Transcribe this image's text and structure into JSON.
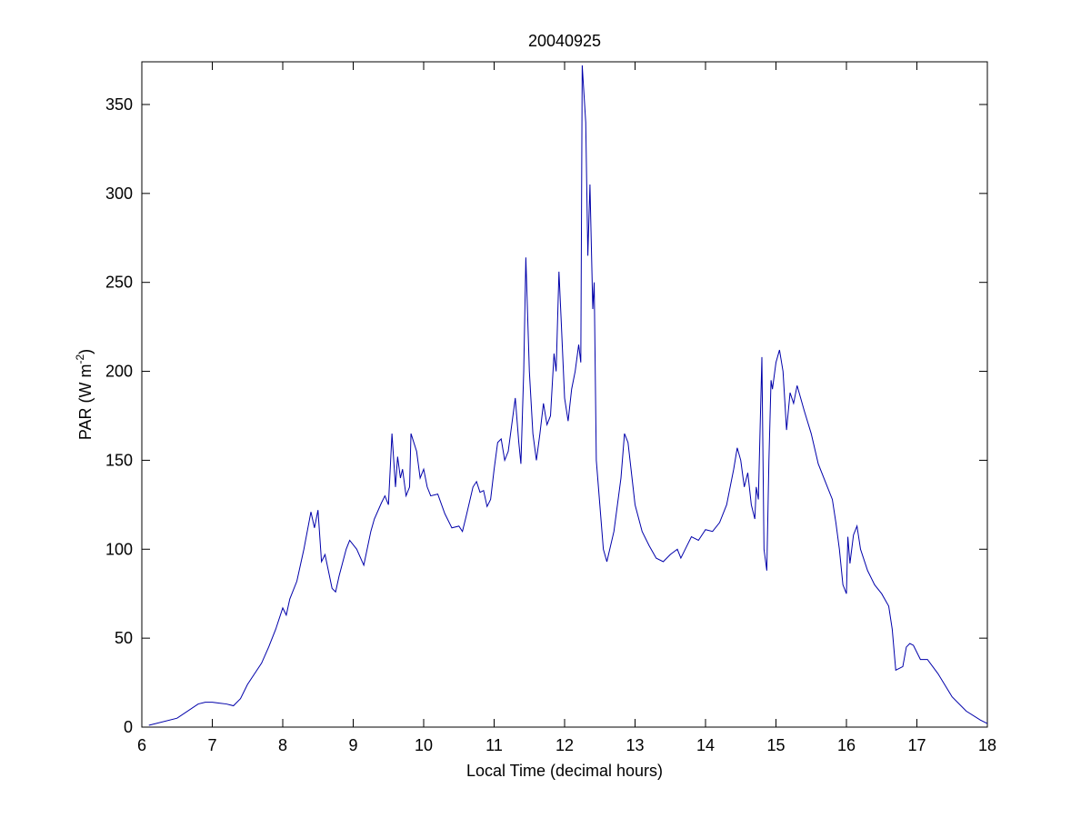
{
  "chart_data": {
    "type": "line",
    "title": "20040925",
    "xlabel": "Local Time (decimal hours)",
    "ylabel": [
      "PAR (W m",
      "-2",
      ")"
    ],
    "xlim": [
      6,
      18
    ],
    "xticks": [
      6,
      7,
      8,
      9,
      10,
      11,
      12,
      13,
      14,
      15,
      16,
      17,
      18
    ],
    "ylim": [
      0,
      374
    ],
    "yticks": [
      0,
      50,
      100,
      150,
      200,
      250,
      300,
      350
    ],
    "grid": false,
    "series": [
      {
        "color": "#0000aa",
        "x": [
          6.1,
          6.5,
          6.8,
          6.9,
          7.0,
          7.1,
          7.2,
          7.3,
          7.4,
          7.5,
          7.6,
          7.7,
          7.8,
          7.9,
          8.0,
          8.05,
          8.1,
          8.2,
          8.3,
          8.4,
          8.45,
          8.5,
          8.55,
          8.6,
          8.7,
          8.75,
          8.8,
          8.9,
          8.95,
          9.05,
          9.15,
          9.25,
          9.3,
          9.4,
          9.45,
          9.5,
          9.55,
          9.6,
          9.63,
          9.67,
          9.7,
          9.75,
          9.8,
          9.82,
          9.9,
          9.95,
          10.0,
          10.05,
          10.1,
          10.2,
          10.3,
          10.4,
          10.5,
          10.55,
          10.6,
          10.7,
          10.75,
          10.8,
          10.85,
          10.9,
          10.95,
          11.0,
          11.05,
          11.1,
          11.15,
          11.2,
          11.25,
          11.3,
          11.35,
          11.38,
          11.42,
          11.45,
          11.5,
          11.55,
          11.6,
          11.65,
          11.7,
          11.75,
          11.8,
          11.85,
          11.88,
          11.92,
          11.95,
          12.0,
          12.05,
          12.1,
          12.15,
          12.2,
          12.23,
          12.25,
          12.3,
          12.33,
          12.36,
          12.4,
          12.42,
          12.45,
          12.5,
          12.55,
          12.6,
          12.7,
          12.8,
          12.85,
          12.9,
          13.0,
          13.1,
          13.2,
          13.3,
          13.4,
          13.5,
          13.6,
          13.65,
          13.8,
          13.9,
          14.0,
          14.1,
          14.2,
          14.3,
          14.4,
          14.45,
          14.5,
          14.55,
          14.6,
          14.65,
          14.7,
          14.72,
          14.75,
          14.8,
          14.83,
          14.87,
          14.9,
          14.93,
          14.95,
          15.0,
          15.05,
          15.1,
          15.15,
          15.2,
          15.25,
          15.3,
          15.35,
          15.4,
          15.5,
          15.6,
          15.7,
          15.8,
          15.85,
          15.9,
          15.95,
          16.0,
          16.02,
          16.05,
          16.1,
          16.15,
          16.2,
          16.3,
          16.4,
          16.5,
          16.6,
          16.65,
          16.7,
          16.8,
          16.85,
          16.9,
          16.95,
          17.05,
          17.15,
          17.3,
          17.5,
          17.7,
          17.9,
          18.0
        ],
        "values": [
          1,
          5,
          13,
          14,
          14,
          13.5,
          13,
          12,
          16,
          24,
          30,
          36,
          45,
          55,
          67,
          63,
          72,
          82,
          100,
          121,
          112,
          122,
          93,
          97,
          78,
          76,
          85,
          100,
          105,
          100,
          91,
          110,
          117,
          126,
          130,
          125,
          165,
          135,
          152,
          140,
          145,
          130,
          135,
          165,
          155,
          140,
          145,
          135,
          130,
          131,
          120,
          112,
          113,
          110,
          118,
          135,
          138,
          132,
          133,
          124,
          128,
          145,
          160,
          162,
          150,
          155,
          170,
          185,
          160,
          148,
          200,
          264,
          200,
          165,
          150,
          165,
          182,
          170,
          175,
          210,
          200,
          256,
          230,
          185,
          172,
          190,
          200,
          215,
          205,
          372,
          340,
          265,
          305,
          235,
          250,
          150,
          125,
          100,
          93,
          110,
          140,
          165,
          160,
          125,
          110,
          102,
          95,
          93,
          97,
          100,
          95,
          107,
          105,
          111,
          110,
          115,
          125,
          145,
          157,
          150,
          135,
          143,
          125,
          117,
          135,
          128,
          208,
          100,
          88,
          150,
          195,
          190,
          205,
          212,
          200,
          167,
          188,
          182,
          192,
          185,
          178,
          165,
          148,
          138,
          128,
          115,
          100,
          80,
          75,
          107,
          92,
          108,
          113,
          100,
          88,
          80,
          75,
          68,
          55,
          32,
          34,
          45,
          47,
          46,
          38,
          38,
          30,
          17,
          9,
          4,
          2
        ]
      }
    ]
  }
}
